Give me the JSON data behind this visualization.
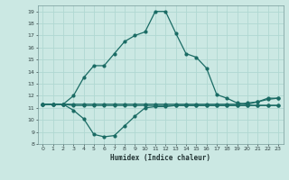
{
  "title": "",
  "xlabel": "Humidex (Indice chaleur)",
  "ylabel": "",
  "bg_color": "#cbe8e3",
  "grid_color": "#b0d8d2",
  "line_color": "#1a6b64",
  "xlim": [
    -0.5,
    23.5
  ],
  "ylim": [
    8,
    19.5
  ],
  "xticks": [
    0,
    1,
    2,
    3,
    4,
    5,
    6,
    7,
    8,
    9,
    10,
    11,
    12,
    13,
    14,
    15,
    16,
    17,
    18,
    19,
    20,
    21,
    22,
    23
  ],
  "yticks": [
    8,
    9,
    10,
    11,
    12,
    13,
    14,
    15,
    16,
    17,
    18,
    19
  ],
  "line1_x": [
    0,
    1,
    2,
    3,
    4,
    5,
    6,
    7,
    8,
    9,
    10,
    11,
    12,
    13,
    14,
    15,
    16,
    17,
    18,
    19,
    20,
    21,
    22,
    23
  ],
  "line1_y": [
    11.3,
    11.3,
    11.3,
    11.2,
    11.2,
    11.2,
    11.2,
    11.2,
    11.2,
    11.2,
    11.2,
    11.2,
    11.2,
    11.2,
    11.2,
    11.2,
    11.2,
    11.2,
    11.2,
    11.2,
    11.2,
    11.2,
    11.2,
    11.2
  ],
  "line2_x": [
    0,
    1,
    2,
    3,
    4,
    5,
    6,
    7,
    8,
    9,
    10,
    11,
    12,
    13,
    14,
    15,
    16,
    17,
    18,
    19,
    20,
    21,
    22,
    23
  ],
  "line2_y": [
    11.3,
    11.3,
    11.3,
    10.8,
    10.1,
    8.8,
    8.6,
    8.7,
    9.5,
    10.3,
    11.0,
    11.1,
    11.1,
    11.2,
    11.2,
    11.2,
    11.2,
    11.2,
    11.2,
    11.2,
    11.2,
    11.2,
    11.2,
    11.2
  ],
  "line3_x": [
    0,
    1,
    2,
    3,
    4,
    5,
    6,
    7,
    8,
    9,
    10,
    11,
    12,
    13,
    14,
    15,
    16,
    17,
    18,
    19,
    20,
    21,
    22,
    23
  ],
  "line3_y": [
    11.3,
    11.3,
    11.3,
    12.0,
    13.5,
    14.5,
    14.5,
    15.5,
    16.5,
    17.0,
    17.3,
    19.0,
    19.0,
    17.2,
    15.5,
    15.2,
    14.3,
    12.1,
    11.8,
    11.4,
    11.3,
    11.5,
    11.8,
    11.8
  ],
  "line4_x": [
    0,
    1,
    2,
    3,
    4,
    5,
    6,
    7,
    8,
    9,
    10,
    11,
    12,
    13,
    14,
    15,
    16,
    17,
    18,
    19,
    20,
    21,
    22,
    23
  ],
  "line4_y": [
    11.3,
    11.3,
    11.3,
    11.3,
    11.3,
    11.3,
    11.3,
    11.3,
    11.3,
    11.3,
    11.3,
    11.3,
    11.3,
    11.3,
    11.3,
    11.3,
    11.3,
    11.3,
    11.3,
    11.3,
    11.4,
    11.5,
    11.7,
    11.8
  ]
}
